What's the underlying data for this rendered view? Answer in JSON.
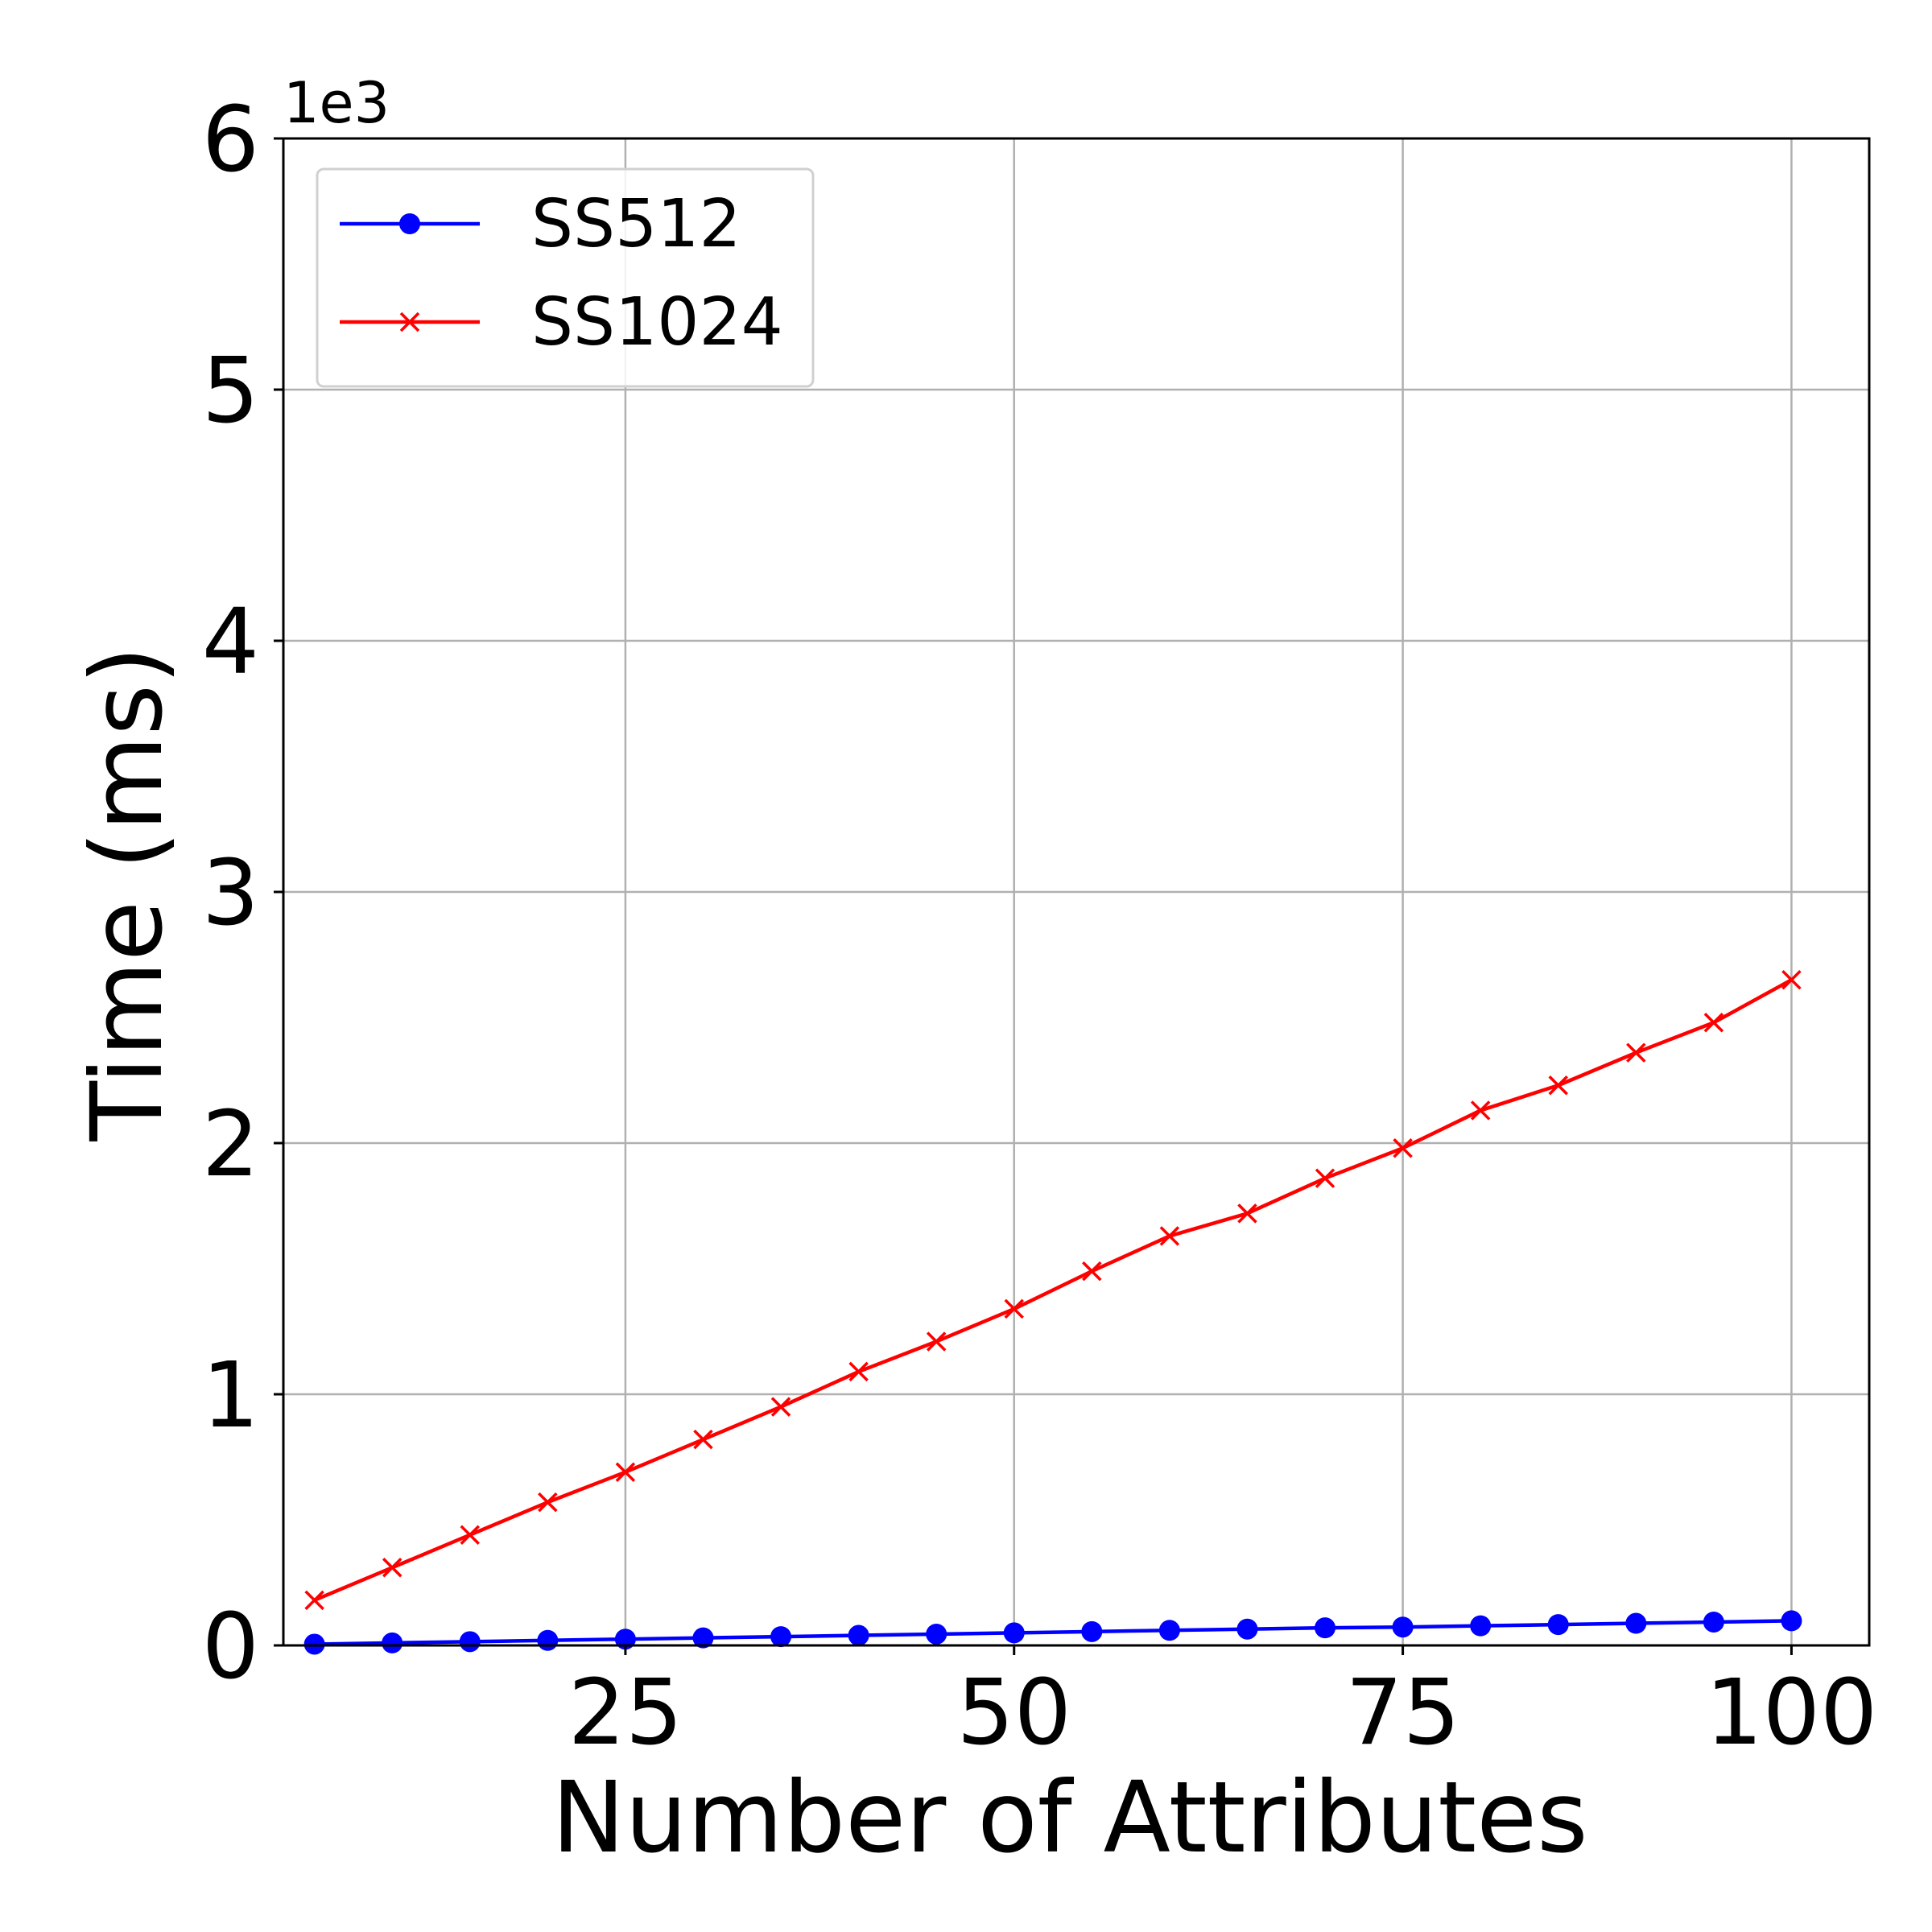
{
  "chart_data": {
    "type": "line",
    "title": "",
    "xlabel": "Number of Attributes",
    "ylabel": "Time (ms)",
    "y_offset_label": "1e3",
    "xlim": [
      3,
      105
    ],
    "ylim": [
      0,
      6
    ],
    "xticks": [
      25,
      50,
      75,
      100
    ],
    "xtick_labels": [
      "25",
      "50",
      "75",
      "100"
    ],
    "yticks": [
      0,
      1,
      2,
      3,
      4,
      5,
      6
    ],
    "ytick_labels": [
      "0",
      "1",
      "2",
      "3",
      "4",
      "5",
      "6"
    ],
    "grid": true,
    "legend_position": "top-left",
    "x": [
      5,
      10,
      15,
      20,
      25,
      30,
      35,
      40,
      45,
      50,
      55,
      60,
      65,
      70,
      75,
      80,
      85,
      90,
      95,
      100
    ],
    "series": [
      {
        "name": "SS512",
        "color": "#0000ff",
        "marker": "circle",
        "values": [
          0.005,
          0.01,
          0.015,
          0.02,
          0.025,
          0.03,
          0.035,
          0.04,
          0.045,
          0.05,
          0.055,
          0.06,
          0.065,
          0.07,
          0.073,
          0.078,
          0.083,
          0.088,
          0.093,
          0.098
        ]
      },
      {
        "name": "SS1024",
        "color": "#ff0000",
        "marker": "x",
        "values": [
          0.18,
          0.31,
          0.44,
          0.57,
          0.69,
          0.82,
          0.95,
          1.09,
          1.21,
          1.34,
          1.49,
          1.63,
          1.72,
          1.86,
          1.98,
          2.13,
          2.23,
          2.36,
          2.48,
          2.65
        ]
      }
    ]
  }
}
